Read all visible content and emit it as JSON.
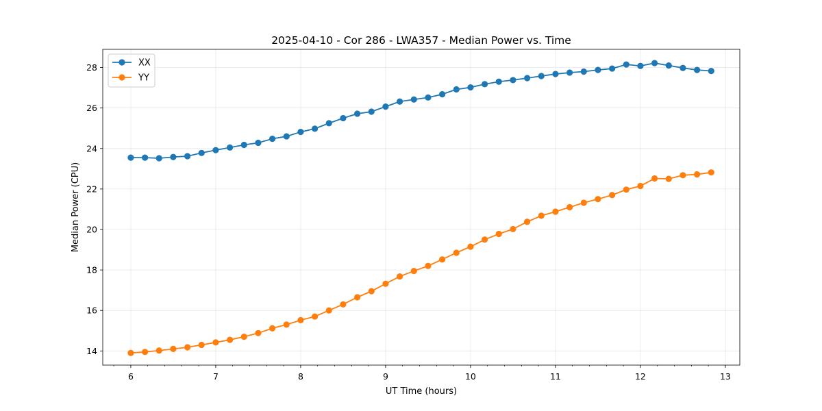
{
  "chart_data": {
    "type": "line",
    "title": "2025-04-10 - Cor 286 - LWA357 - Median Power vs. Time",
    "xlabel": "UT Time (hours)",
    "ylabel": "Median Power (CPU)",
    "xlim": [
      5.67,
      13.17
    ],
    "ylim": [
      13.3,
      28.9
    ],
    "xticks": [
      6,
      7,
      8,
      9,
      10,
      11,
      12,
      13
    ],
    "yticks": [
      14,
      16,
      18,
      20,
      22,
      24,
      26,
      28
    ],
    "grid": true,
    "legend_location": "upper-left",
    "x": [
      6.0,
      6.1667,
      6.3333,
      6.5,
      6.6667,
      6.8333,
      7.0,
      7.1667,
      7.3333,
      7.5,
      7.6667,
      7.8333,
      8.0,
      8.1667,
      8.3333,
      8.5,
      8.6667,
      8.8333,
      9.0,
      9.1667,
      9.3333,
      9.5,
      9.6667,
      9.8333,
      10.0,
      10.1667,
      10.3333,
      10.5,
      10.6667,
      10.8333,
      11.0,
      11.1667,
      11.3333,
      11.5,
      11.6667,
      11.8333,
      12.0,
      12.1667,
      12.3333,
      12.5,
      12.6667,
      12.8333
    ],
    "series": [
      {
        "name": "XX",
        "color": "#1f77b4",
        "values": [
          23.55,
          23.55,
          23.52,
          23.58,
          23.62,
          23.78,
          23.92,
          24.05,
          24.18,
          24.28,
          24.48,
          24.6,
          24.82,
          24.98,
          25.25,
          25.5,
          25.72,
          25.82,
          26.07,
          26.32,
          26.42,
          26.52,
          26.68,
          26.92,
          27.02,
          27.18,
          27.3,
          27.38,
          27.48,
          27.58,
          27.68,
          27.75,
          27.8,
          27.88,
          27.95,
          28.15,
          28.08,
          28.22,
          28.1,
          27.98,
          27.88,
          27.83
        ]
      },
      {
        "name": "YY",
        "color": "#ff7f0e",
        "values": [
          13.9,
          13.95,
          14.02,
          14.1,
          14.18,
          14.3,
          14.42,
          14.55,
          14.7,
          14.88,
          15.12,
          15.3,
          15.52,
          15.7,
          16.0,
          16.3,
          16.65,
          16.95,
          17.32,
          17.68,
          17.95,
          18.2,
          18.52,
          18.85,
          19.15,
          19.5,
          19.78,
          20.02,
          20.38,
          20.68,
          20.88,
          21.1,
          21.32,
          21.5,
          21.7,
          21.97,
          22.15,
          22.52,
          22.5,
          22.68,
          22.72,
          22.82
        ]
      }
    ]
  }
}
